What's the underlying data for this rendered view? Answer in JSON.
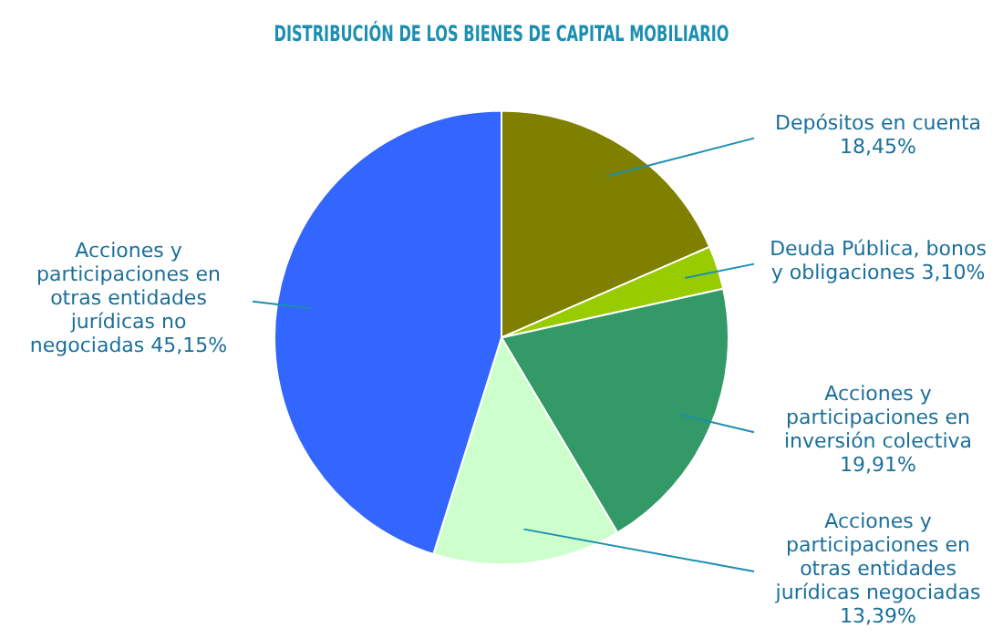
{
  "chart_data": {
    "type": "pie",
    "title": "DISTRIBUCIÓN DE LOS BIENES DE CAPITAL MOBILIARIO",
    "categories": [
      "Depósitos en cuenta",
      "Deuda Pública, bonos y obligaciones",
      "Acciones y participaciones en inversión colectiva",
      "Acciones y participaciones en otras entidades jurídicas negociadas",
      "Acciones y participaciones en otras entidades jurídicas no negociadas"
    ],
    "values": [
      18.45,
      3.1,
      19.91,
      13.39,
      45.15
    ],
    "value_labels": [
      "18,45%",
      "3,10%",
      "19,91%",
      "13,39%",
      "45,15%"
    ],
    "colors": [
      "#808000",
      "#99cc00",
      "#339966",
      "#ccffcc",
      "#3366ff"
    ]
  }
}
